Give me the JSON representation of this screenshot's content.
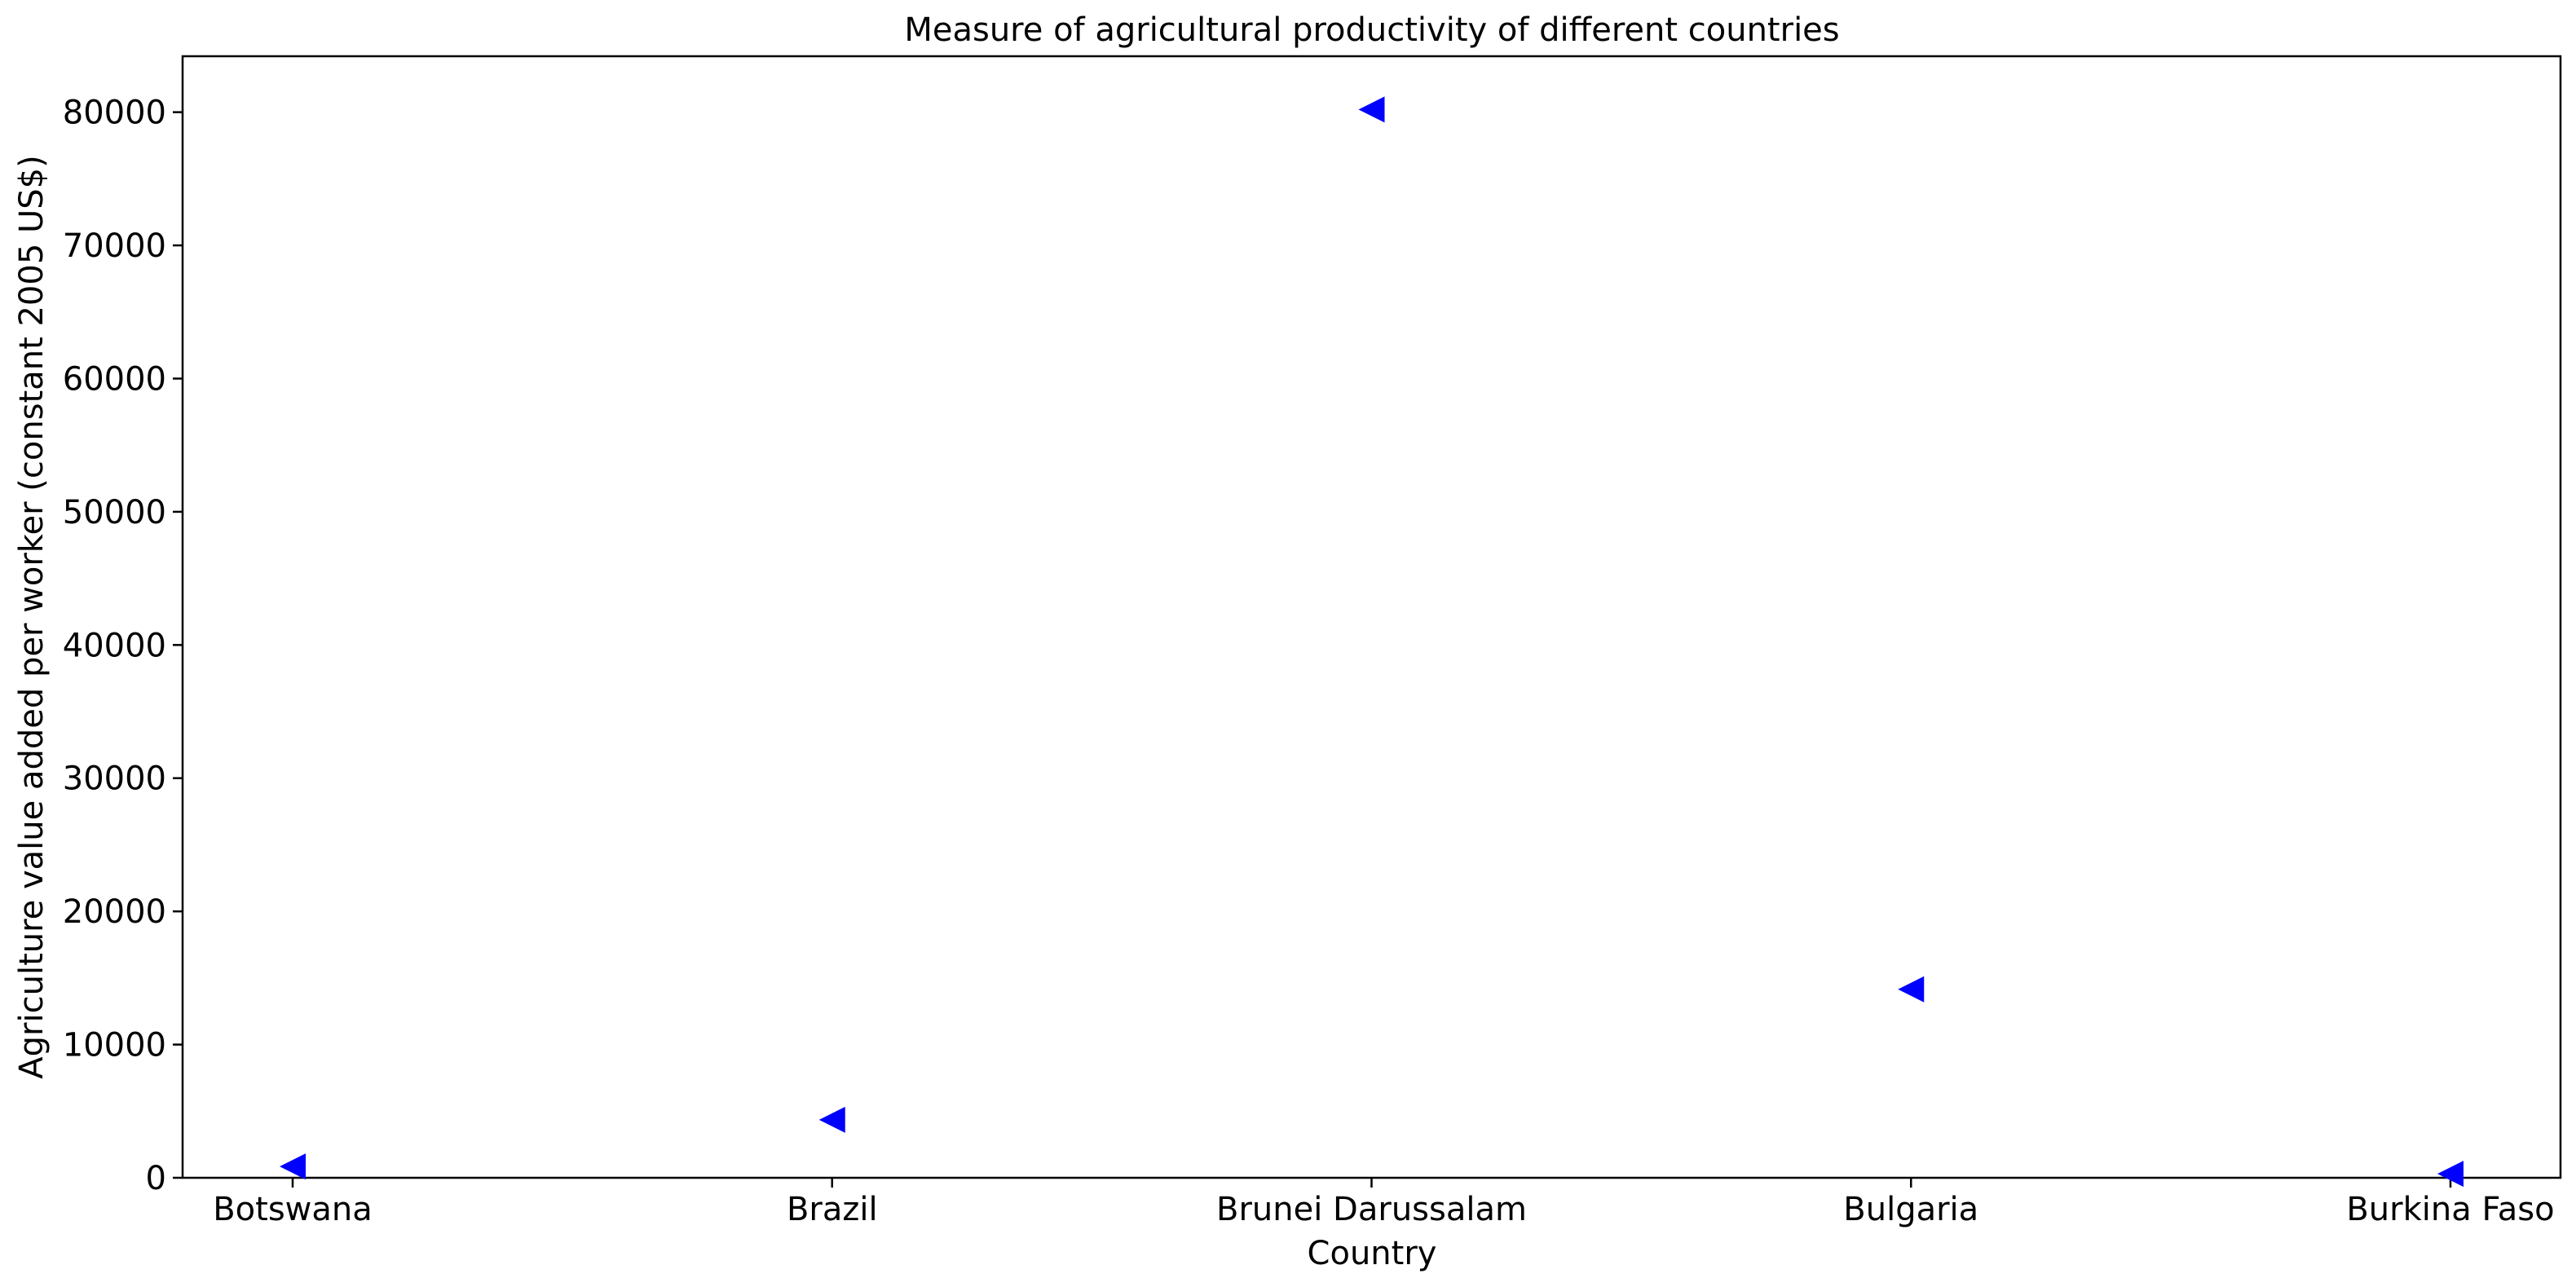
{
  "chart_data": {
    "type": "scatter",
    "title": "Measure of agricultural productivity of different countries",
    "xlabel": "Country",
    "ylabel": "Agriculture value added per worker (constant 2005 US$)",
    "categories": [
      "Botswana",
      "Brazil",
      "Brunei Darussalam",
      "Bulgaria",
      "Burkina Faso"
    ],
    "series": [
      {
        "name": "Agriculture value added per worker",
        "marker": "triangle-left",
        "color": "#0000ff",
        "values": [
          850,
          4350,
          80200,
          14150,
          300
        ]
      }
    ],
    "ylim": [
      0,
      84200
    ],
    "yticks": [
      0,
      10000,
      20000,
      30000,
      40000,
      50000,
      60000,
      70000,
      80000
    ],
    "grid": false
  }
}
